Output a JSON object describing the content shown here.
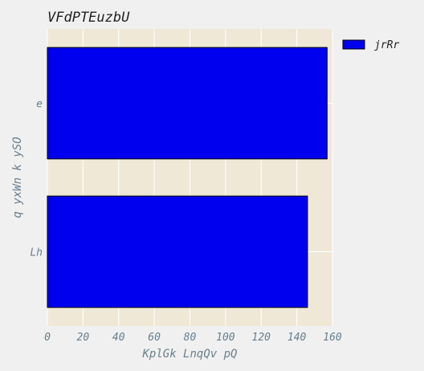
{
  "chart_data": {
    "type": "bar",
    "orientation": "horizontal",
    "title": "VFdPTEuzbU",
    "xlabel": "KplGk LnqQv pQ",
    "ylabel": "q yxWn k ySO",
    "categories": [
      "Lh",
      "e"
    ],
    "xlim": [
      0,
      160
    ],
    "xticks": [
      "0",
      "20",
      "40",
      "60",
      "80",
      "100",
      "120",
      "140",
      "160"
    ],
    "grid": true,
    "legend_position": "top-right, outside plot",
    "series": [
      {
        "name": "jrRr",
        "values": [
          146,
          157
        ],
        "color": "#0000ee"
      }
    ],
    "colors": {
      "plot_background": "#efe8d6",
      "figure_background": "#f0f0f0",
      "bar_edge": "#000000",
      "grid": "#ffffff",
      "axis_text": "#6b7f8c"
    }
  }
}
